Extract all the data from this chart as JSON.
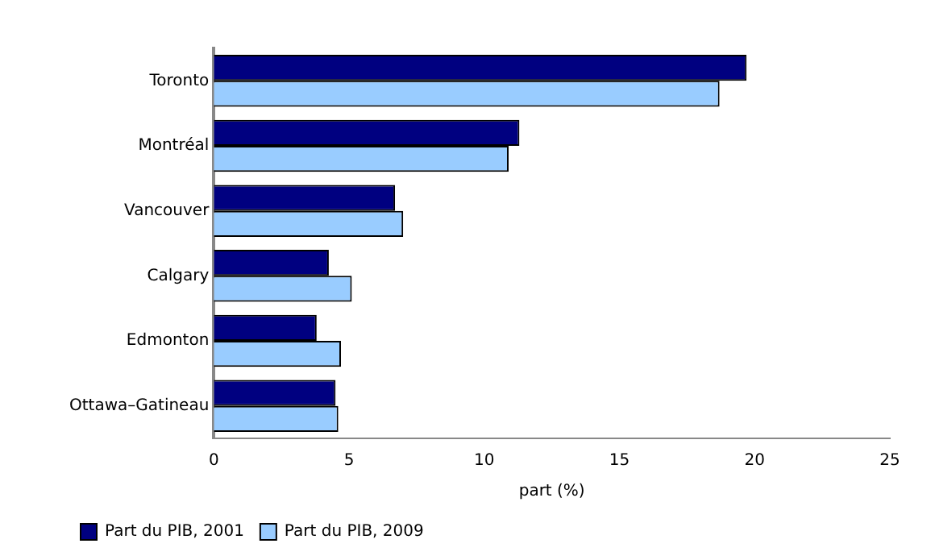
{
  "chart_data": {
    "type": "bar",
    "orientation": "horizontal",
    "xlabel": "part (%)",
    "categories": [
      "Toronto",
      "Montréal",
      "Vancouver",
      "Calgary",
      "Edmonton",
      "Ottawa–Gatineau"
    ],
    "series": [
      {
        "name": "Part du PIB, 2001",
        "color": "#000080",
        "values": [
          19.7,
          11.3,
          6.7,
          4.25,
          3.8,
          4.5
        ]
      },
      {
        "name": "Part du PIB, 2009",
        "color": "#99ccff",
        "values": [
          18.7,
          10.9,
          7.0,
          5.1,
          4.7,
          4.6
        ]
      }
    ],
    "xlim": [
      0,
      25
    ],
    "xticks": [
      0,
      5,
      10,
      15,
      20,
      25
    ],
    "grid": false,
    "legend": "bottom"
  }
}
